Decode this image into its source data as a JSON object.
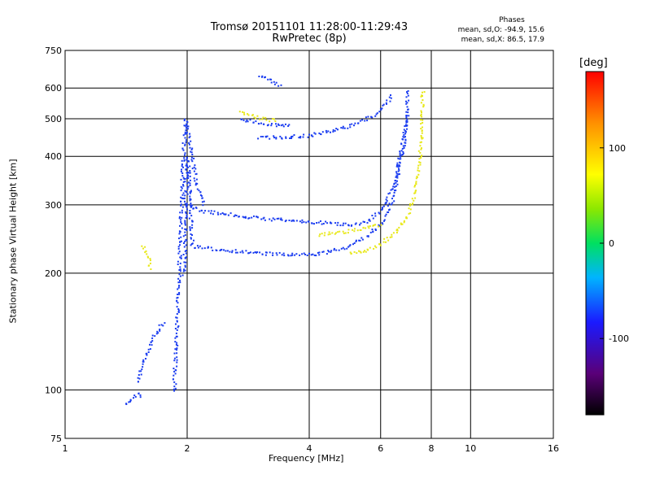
{
  "chart_data": {
    "type": "scatter",
    "title": "Tromsø 20151101 11:28:00-11:29:43",
    "subtitle": "RwPretec (8p)",
    "xlabel": "Frequency [MHz]",
    "ylabel": "Stationary phase Virtual Height [km]",
    "x_scale": "log",
    "y_scale": "log",
    "xlim": [
      1,
      16
    ],
    "ylim": [
      75,
      750
    ],
    "xticks": [
      "1",
      "2",
      "4",
      "6",
      "8",
      "10",
      "16"
    ],
    "xtick_values": [
      1,
      2,
      4,
      6,
      8,
      10,
      16
    ],
    "yticks": [
      "75",
      "100",
      "200",
      "300",
      "400",
      "500",
      "600",
      "750"
    ],
    "ytick_values": [
      75,
      100,
      200,
      300,
      400,
      500,
      600,
      750
    ],
    "grid": true,
    "phase_stats": {
      "title": "Phases",
      "line_o": "mean, sd,O: -94.9, 15.6",
      "line_x": "mean, sd,X:  86.5, 17.9"
    },
    "colorbar": {
      "label": "[deg]",
      "range": [
        -180,
        180
      ],
      "ticks": [
        "100",
        "0",
        "-100"
      ],
      "tick_values": [
        100,
        0,
        -100
      ]
    },
    "series": [
      {
        "mode": "O",
        "color": "#1a3cf0",
        "phase": -95,
        "traces": [
          {
            "x": [
              1.96,
              1.97,
              1.98,
              2.0,
              2.05,
              2.2,
              2.5,
              3.0,
              3.5,
              4.0,
              4.5,
              5.0,
              5.5,
              6.0,
              6.4,
              6.8,
              7.0
            ],
            "y": [
              200,
              260,
              330,
              400,
              236,
              233,
              230,
              226,
              224,
              224,
              228,
              236,
              248,
              270,
              310,
              420,
              600
            ]
          },
          {
            "x": [
              1.85,
              1.88,
              1.9,
              1.92,
              1.95,
              1.98,
              2.0,
              2.05,
              2.1,
              2.2
            ],
            "y": [
              100,
              150,
              190,
              260,
              400,
              500,
              460,
              400,
              340,
              300
            ]
          },
          {
            "x": [
              2.0,
              2.2,
              2.5,
              3.0,
              3.5,
              4.0,
              4.5,
              5.0,
              5.5,
              6.0,
              6.5,
              7.0
            ],
            "y": [
              300,
              290,
              285,
              278,
              275,
              272,
              270,
              268,
              272,
              290,
              350,
              520
            ]
          },
          {
            "x": [
              3.0,
              3.5,
              4.0,
              4.5,
              5.0,
              5.5,
              6.0,
              6.4
            ],
            "y": [
              450,
              450,
              455,
              465,
              480,
              500,
              530,
              580
            ]
          },
          {
            "x": [
              2.7,
              3.0,
              3.3,
              3.6
            ],
            "y": [
              500,
              490,
              485,
              480
            ]
          },
          {
            "x": [
              3.0,
              3.2,
              3.4
            ],
            "y": [
              650,
              630,
              610
            ]
          },
          {
            "x": [
              1.5,
              1.55,
              1.6,
              1.65,
              1.7,
              1.75
            ],
            "y": [
              105,
              118,
              128,
              138,
              145,
              152
            ]
          },
          {
            "x": [
              1.4,
              1.45,
              1.5,
              1.55
            ],
            "y": [
              92,
              95,
              98,
              96
            ]
          }
        ]
      },
      {
        "mode": "X",
        "color": "#e8e81a",
        "phase": 87,
        "traces": [
          {
            "x": [
              5.0,
              5.5,
              6.0,
              6.5,
              7.0,
              7.3,
              7.5,
              7.6
            ],
            "y": [
              225,
              230,
              240,
              255,
              285,
              330,
              420,
              600
            ]
          },
          {
            "x": [
              4.2,
              4.6,
              5.0,
              5.5,
              6.0
            ],
            "y": [
              252,
              255,
              258,
              262,
              268
            ]
          },
          {
            "x": [
              2.7,
              3.0,
              3.3
            ],
            "y": [
              520,
              505,
              495
            ]
          },
          {
            "x": [
              1.55,
              1.6,
              1.62
            ],
            "y": [
              235,
              220,
              205
            ]
          }
        ]
      }
    ]
  }
}
